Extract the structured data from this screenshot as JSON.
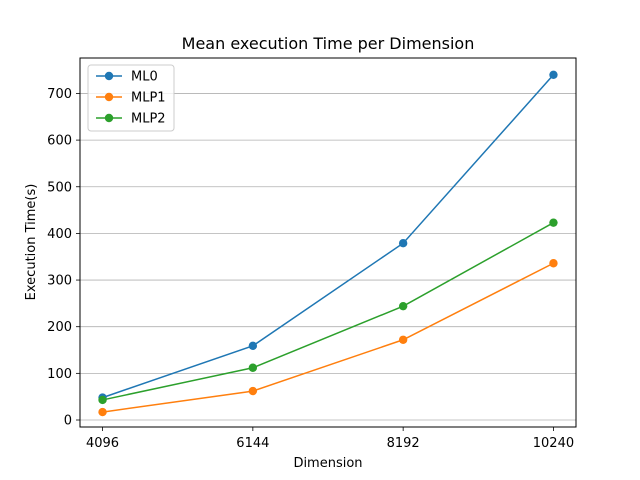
{
  "chart_data": {
    "type": "line",
    "title": "Mean execution Time per Dimension",
    "xlabel": "Dimension",
    "ylabel": "Execution Time(s)",
    "x": [
      4096,
      6144,
      8192,
      10240
    ],
    "x_ticks": [
      "4096",
      "6144",
      "8192",
      "10240"
    ],
    "y_ticks": [
      0,
      100,
      200,
      300,
      400,
      500,
      600,
      700
    ],
    "ylim": [
      -15,
      776
    ],
    "grid": "horizontal",
    "legend_position": "top-left",
    "series": [
      {
        "name": "ML0",
        "color": "#1f77b4",
        "marker": "circle",
        "values": [
          48,
          159,
          379,
          740
        ]
      },
      {
        "name": "MLP1",
        "color": "#ff7f0e",
        "marker": "circle",
        "values": [
          17,
          62,
          172,
          336
        ]
      },
      {
        "name": "MLP2",
        "color": "#2ca02c",
        "marker": "circle",
        "values": [
          43,
          112,
          244,
          423
        ]
      }
    ]
  }
}
